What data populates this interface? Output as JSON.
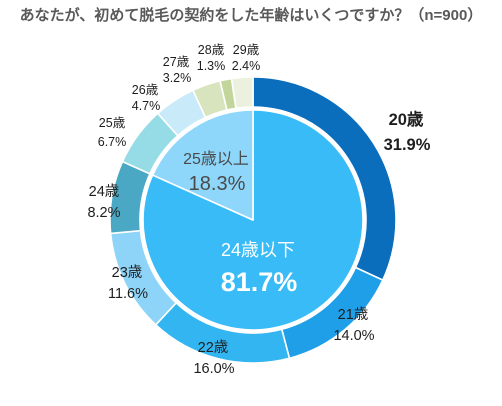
{
  "chart_data": {
    "type": "pie",
    "title": "あなたが、初めて脱毛の契約をした年齢はいくつですか？（n=900）",
    "outer_ring": {
      "categories": [
        "20歳",
        "21歳",
        "22歳",
        "23歳",
        "24歳",
        "25歳",
        "26歳",
        "27歳",
        "28歳",
        "29歳"
      ],
      "values": [
        31.9,
        14.0,
        16.0,
        11.6,
        8.2,
        6.7,
        4.7,
        3.2,
        1.3,
        2.4
      ],
      "value_labels": [
        "31.9%",
        "14.0%",
        "16.0%",
        "11.6%",
        "8.2%",
        "6.7%",
        "4.7%",
        "3.2%",
        "1.3%",
        "2.4%"
      ],
      "colors": [
        "#0a6ebd",
        "#1f9fe8",
        "#33b5f2",
        "#8dd4f8",
        "#4aa8c4",
        "#96dce6",
        "#c9eaf8",
        "#d7e4bd",
        "#c2d69b",
        "#ebf1de"
      ]
    },
    "inner_pie": {
      "categories": [
        "24歳以下",
        "25歳以上"
      ],
      "values": [
        81.7,
        18.3
      ],
      "value_labels": [
        "81.7%",
        "18.3%"
      ],
      "colors": [
        "#38bbf6",
        "#8ed7fb"
      ]
    }
  }
}
